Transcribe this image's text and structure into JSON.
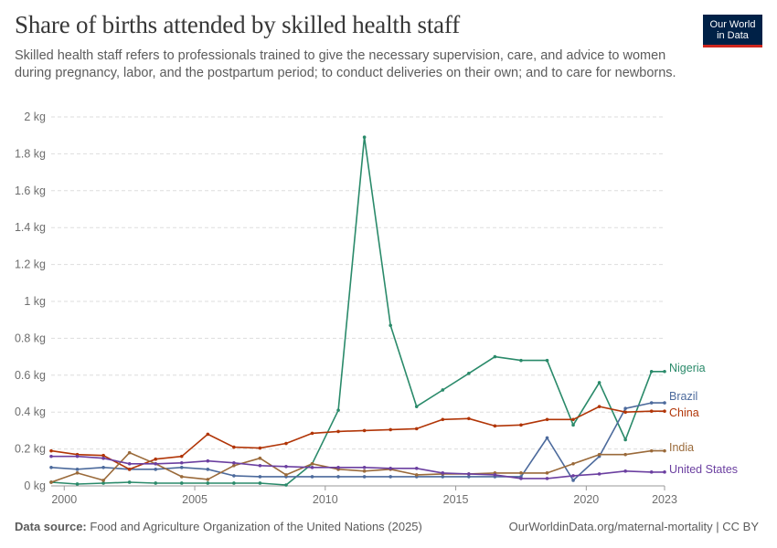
{
  "header": {
    "title": "Share of births attended by skilled health staff",
    "subtitle": "Skilled health staff refers to professionals trained to give the necessary supervision, care, and advice to women during pregnancy, labor, and the postpartum period; to conduct deliveries on their own; and to care for newborns.",
    "logo_line1": "Our World",
    "logo_line2": "in Data"
  },
  "footer": {
    "source_label": "Data source:",
    "source_text": "Food and Agriculture Organization of the United Nations (2025)",
    "credit": "OurWorldinData.org/maternal-mortality | CC BY"
  },
  "chart_data": {
    "type": "line",
    "title": "Share of births attended by skilled health staff",
    "xlabel": "",
    "ylabel": "",
    "xlim": [
      1999.5,
      2023
    ],
    "ylim": [
      0,
      2
    ],
    "x_ticks": [
      2000,
      2005,
      2010,
      2015,
      2020,
      2023
    ],
    "y_ticks": [
      0,
      0.2,
      0.4,
      0.6,
      0.8,
      1,
      1.2,
      1.4,
      1.6,
      1.8,
      2
    ],
    "y_tick_labels": [
      "0 kg",
      "0.2 kg",
      "0.4 kg",
      "0.6 kg",
      "0.8 kg",
      "1 kg",
      "1.2 kg",
      "1.4 kg",
      "1.6 kg",
      "1.8 kg",
      "2 kg"
    ],
    "grid": "horizontal dashed",
    "legend": "inline labels at line ends (right)",
    "x": [
      1999.5,
      2000.5,
      2001.5,
      2002.5,
      2003.5,
      2004.5,
      2005.5,
      2006.5,
      2007.5,
      2008.5,
      2009.5,
      2010.5,
      2011.5,
      2012.5,
      2013.5,
      2014.5,
      2015.5,
      2016.5,
      2017.5,
      2018.5,
      2019.5,
      2020.5,
      2021.5,
      2022.5,
      2023
    ],
    "series": [
      {
        "name": "Nigeria",
        "color": "#2a8a6a",
        "values": [
          0.02,
          0.01,
          0.015,
          0.02,
          0.015,
          0.015,
          0.015,
          0.015,
          0.015,
          0.005,
          0.12,
          0.41,
          1.89,
          0.87,
          0.43,
          0.52,
          0.61,
          0.7,
          0.68,
          0.68,
          0.33,
          0.56,
          0.25,
          0.62,
          0.62
        ]
      },
      {
        "name": "Brazil",
        "color": "#4c6a9c",
        "values": [
          0.1,
          0.09,
          0.1,
          0.09,
          0.09,
          0.1,
          0.09,
          0.055,
          0.05,
          0.05,
          0.05,
          0.05,
          0.05,
          0.05,
          0.05,
          0.05,
          0.05,
          0.05,
          0.05,
          0.26,
          0.03,
          0.16,
          0.42,
          0.45,
          0.45
        ]
      },
      {
        "name": "China",
        "color": "#b13507",
        "values": [
          0.19,
          0.17,
          0.165,
          0.09,
          0.145,
          0.16,
          0.28,
          0.21,
          0.205,
          0.23,
          0.285,
          0.295,
          0.3,
          0.305,
          0.31,
          0.36,
          0.365,
          0.325,
          0.33,
          0.36,
          0.36,
          0.43,
          0.4,
          0.405,
          0.405
        ]
      },
      {
        "name": "India",
        "color": "#9a6a3a",
        "values": [
          0.02,
          0.07,
          0.03,
          0.18,
          0.12,
          0.05,
          0.035,
          0.11,
          0.15,
          0.06,
          0.12,
          0.09,
          0.08,
          0.09,
          0.06,
          0.065,
          0.065,
          0.07,
          0.07,
          0.07,
          0.12,
          0.17,
          0.17,
          0.19,
          0.19
        ]
      },
      {
        "name": "United States",
        "color": "#6b3fa0",
        "values": [
          0.16,
          0.16,
          0.15,
          0.12,
          0.12,
          0.125,
          0.135,
          0.125,
          0.11,
          0.105,
          0.1,
          0.1,
          0.1,
          0.095,
          0.095,
          0.07,
          0.065,
          0.06,
          0.04,
          0.04,
          0.055,
          0.065,
          0.08,
          0.075,
          0.075
        ]
      }
    ]
  }
}
